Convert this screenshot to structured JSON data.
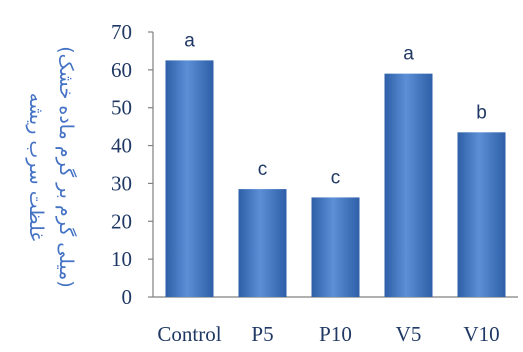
{
  "chart_data": {
    "type": "bar",
    "title": "",
    "xlabel": "",
    "ylabel_line1": "غلظت سرب ریشه",
    "ylabel_line2": "(میلی گرم بر گرم ماده خشک)",
    "categories": [
      "Control",
      "P5",
      "P10",
      "V5",
      "V10"
    ],
    "values": [
      62.5,
      28.5,
      26.3,
      59.0,
      43.5
    ],
    "significance_letters": [
      "a",
      "c",
      "c",
      "a",
      "b"
    ],
    "ylim": [
      0,
      70
    ],
    "yticks": [
      0,
      10,
      20,
      30,
      40,
      50,
      60,
      70
    ],
    "grid": false,
    "legend": "none",
    "colors": {
      "bar_light": "#5b8fd6",
      "bar_dark": "#2e5fa8",
      "axis": "#808080",
      "text": "#1f3864",
      "ylabel": "#4472c4"
    }
  }
}
